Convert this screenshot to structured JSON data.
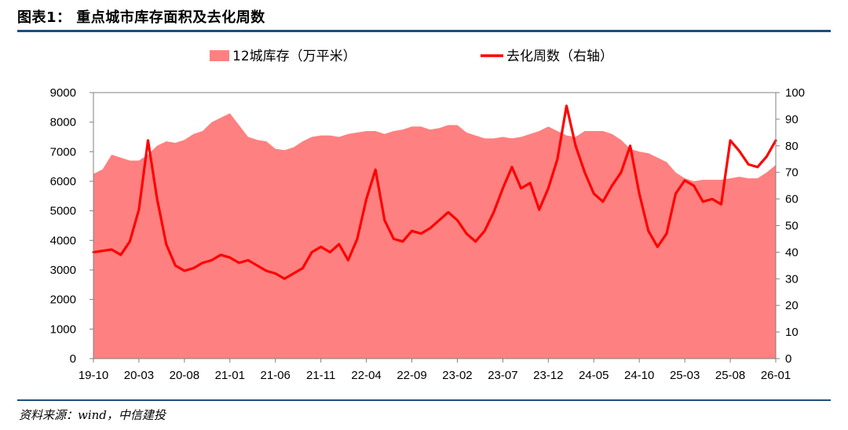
{
  "header": {
    "title": "图表1：   重点城市库存面积及去化周数"
  },
  "footer": {
    "source": "资料来源：wind，中信建投"
  },
  "colors": {
    "inventory_fill": "#ff8080",
    "turnover_line": "#ff0000",
    "rule": "#1f4e79"
  },
  "chart_data": {
    "type": "area",
    "legend_position": "top",
    "grid": false,
    "x_tick_labels": [
      "19-10",
      "20-03",
      "20-08",
      "21-01",
      "21-06",
      "21-11",
      "22-04",
      "22-09",
      "23-02",
      "23-07",
      "23-12",
      "24-05",
      "24-10",
      "25-03",
      "25-08",
      "26-01"
    ],
    "x": [
      "19-10",
      "19-11",
      "19-12",
      "20-01",
      "20-02",
      "20-03",
      "20-04",
      "20-05",
      "20-06",
      "20-07",
      "20-08",
      "20-09",
      "20-10",
      "20-11",
      "20-12",
      "21-01",
      "21-02",
      "21-03",
      "21-04",
      "21-05",
      "21-06",
      "21-07",
      "21-08",
      "21-09",
      "21-10",
      "21-11",
      "21-12",
      "22-01",
      "22-02",
      "22-03",
      "22-04",
      "22-05",
      "22-06",
      "22-07",
      "22-08",
      "22-09",
      "22-10",
      "22-11",
      "22-12",
      "23-01",
      "23-02",
      "23-03",
      "23-04",
      "23-05",
      "23-06",
      "23-07",
      "23-08",
      "23-09",
      "23-10",
      "23-11",
      "23-12",
      "24-01",
      "24-02",
      "24-03",
      "24-04",
      "24-05",
      "24-06",
      "24-07",
      "24-08",
      "24-09",
      "24-10",
      "24-11",
      "24-12",
      "25-01",
      "25-02",
      "25-03",
      "25-04",
      "25-05",
      "25-06",
      "25-07",
      "25-08",
      "25-09",
      "25-10",
      "25-11",
      "25-12",
      "26-01"
    ],
    "y_left": {
      "min": 0,
      "max": 9000,
      "ticks": [
        0,
        1000,
        2000,
        3000,
        4000,
        5000,
        6000,
        7000,
        8000,
        9000
      ]
    },
    "y_right": {
      "min": 0,
      "max": 100,
      "ticks": [
        0,
        10,
        20,
        30,
        40,
        50,
        60,
        70,
        80,
        90,
        100
      ]
    },
    "series": [
      {
        "name": "12城库存（万平米）",
        "type": "area",
        "axis": "left",
        "values": [
          6250,
          6400,
          6900,
          6800,
          6700,
          6700,
          6900,
          7200,
          7350,
          7300,
          7400,
          7600,
          7700,
          8000,
          8150,
          8300,
          7900,
          7500,
          7400,
          7350,
          7100,
          7050,
          7150,
          7350,
          7500,
          7550,
          7550,
          7500,
          7600,
          7650,
          7700,
          7700,
          7600,
          7700,
          7750,
          7850,
          7850,
          7750,
          7800,
          7900,
          7900,
          7650,
          7550,
          7450,
          7450,
          7500,
          7450,
          7500,
          7600,
          7700,
          7850,
          7700,
          7550,
          7500,
          7700,
          7700,
          7700,
          7600,
          7400,
          7100,
          7000,
          6950,
          6800,
          6650,
          6300,
          6100,
          6000,
          6050,
          6050,
          6050,
          6100,
          6150,
          6100,
          6100,
          6300,
          6550
        ]
      },
      {
        "name": "去化周数（右轴）",
        "type": "line",
        "axis": "right",
        "values": [
          40,
          40.5,
          41,
          39,
          44,
          56,
          82,
          60,
          43,
          35,
          33,
          34,
          36,
          37,
          39,
          38,
          36,
          37,
          35,
          33,
          32,
          30,
          32,
          34,
          40,
          42,
          40,
          43,
          37,
          45,
          60,
          71,
          52,
          45,
          44,
          48,
          47,
          49,
          52,
          55,
          52,
          47,
          44,
          48,
          55,
          64,
          72,
          64,
          66,
          56,
          64,
          75,
          95,
          80,
          70,
          62,
          59,
          65,
          70,
          80,
          62,
          48,
          42,
          47,
          62,
          67,
          65,
          59,
          60,
          58,
          82,
          78,
          73,
          72,
          76,
          82
        ]
      }
    ]
  }
}
